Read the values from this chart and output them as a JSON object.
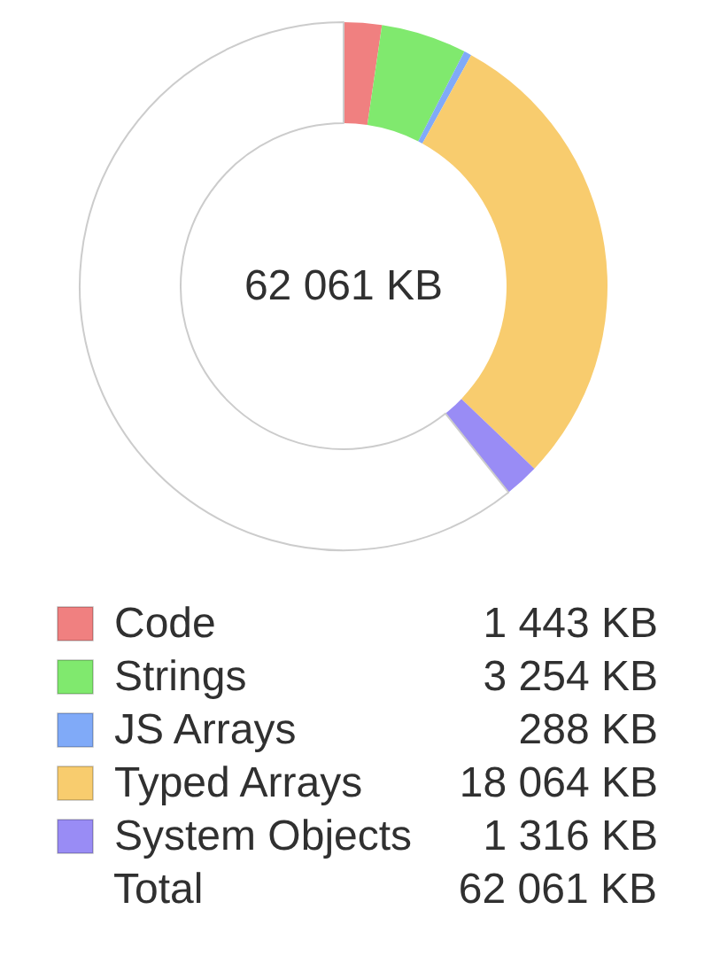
{
  "chart_data": {
    "type": "donut",
    "categories": [
      "Code",
      "Strings",
      "JS Arrays",
      "Typed Arrays",
      "System Objects",
      null
    ],
    "values": [
      1443,
      3254,
      288,
      18064,
      1316,
      37696
    ],
    "colors": [
      "#f08080",
      "#80e96e",
      "#80aaf8",
      "#f8cc6e",
      "#998cf5",
      "#ffffff"
    ],
    "value_labels": [
      "1 443 KB",
      "3 254 KB",
      "288 KB",
      "18 064 KB",
      "1 316 KB",
      null
    ],
    "legend": "bottom",
    "annotations": [
      "62 061 KB",
      "Total",
      "62 061 KB"
    ]
  }
}
